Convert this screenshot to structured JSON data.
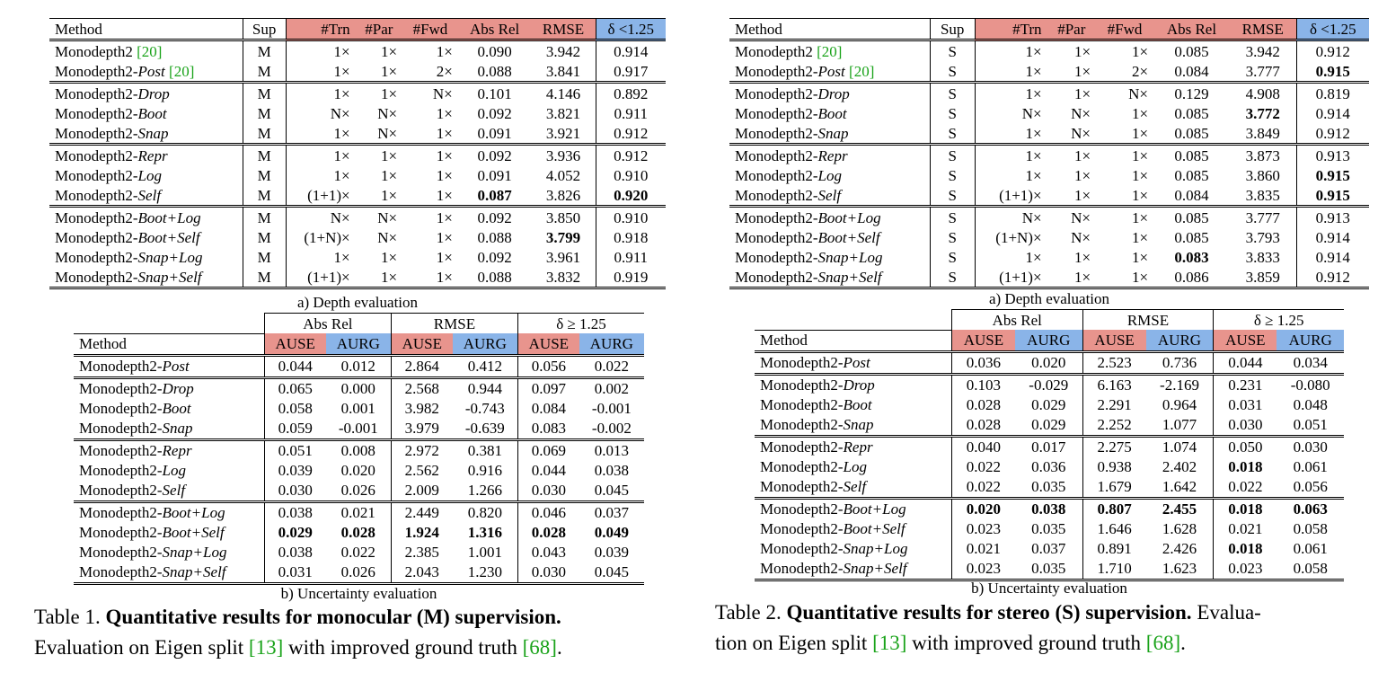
{
  "table1": {
    "depth": {
      "headers": [
        "Method",
        "Sup",
        "#Trn",
        "#Par",
        "#Fwd",
        "Abs Rel",
        "RMSE",
        "δ <1.25"
      ],
      "groups": [
        [
          {
            "base": "Monodepth2 ",
            "variant": "",
            "cite": "[20]",
            "sup": "M",
            "trn": "1×",
            "par": "1×",
            "fwd": "1×",
            "absrel": "0.090",
            "rmse": "3.942",
            "delta": "0.914",
            "bold": []
          },
          {
            "base": "Monodepth2-",
            "variant": "Post",
            "cite": " [20]",
            "sup": "M",
            "trn": "1×",
            "par": "1×",
            "fwd": "2×",
            "absrel": "0.088",
            "rmse": "3.841",
            "delta": "0.917",
            "bold": []
          }
        ],
        [
          {
            "base": "Monodepth2-",
            "variant": "Drop",
            "cite": "",
            "sup": "M",
            "trn": "1×",
            "par": "1×",
            "fwd": "N×",
            "absrel": "0.101",
            "rmse": "4.146",
            "delta": "0.892",
            "bold": []
          },
          {
            "base": "Monodepth2-",
            "variant": "Boot",
            "cite": "",
            "sup": "M",
            "trn": "N×",
            "par": "N×",
            "fwd": "1×",
            "absrel": "0.092",
            "rmse": "3.821",
            "delta": "0.911",
            "bold": []
          },
          {
            "base": "Monodepth2-",
            "variant": "Snap",
            "cite": "",
            "sup": "M",
            "trn": "1×",
            "par": "N×",
            "fwd": "1×",
            "absrel": "0.091",
            "rmse": "3.921",
            "delta": "0.912",
            "bold": []
          }
        ],
        [
          {
            "base": "Monodepth2-",
            "variant": "Repr",
            "cite": "",
            "sup": "M",
            "trn": "1×",
            "par": "1×",
            "fwd": "1×",
            "absrel": "0.092",
            "rmse": "3.936",
            "delta": "0.912",
            "bold": []
          },
          {
            "base": "Monodepth2-",
            "variant": "Log",
            "cite": "",
            "sup": "M",
            "trn": "1×",
            "par": "1×",
            "fwd": "1×",
            "absrel": "0.091",
            "rmse": "4.052",
            "delta": "0.910",
            "bold": []
          },
          {
            "base": "Monodepth2-",
            "variant": "Self",
            "cite": "",
            "sup": "M",
            "trn": "(1+1)×",
            "par": "1×",
            "fwd": "1×",
            "absrel": "0.087",
            "rmse": "3.826",
            "delta": "0.920",
            "bold": [
              "absrel",
              "delta"
            ]
          }
        ],
        [
          {
            "base": "Monodepth2-",
            "variant": "Boot+Log",
            "cite": "",
            "sup": "M",
            "trn": "N×",
            "par": "N×",
            "fwd": "1×",
            "absrel": "0.092",
            "rmse": "3.850",
            "delta": "0.910",
            "bold": []
          },
          {
            "base": "Monodepth2-",
            "variant": "Boot+Self",
            "cite": "",
            "sup": "M",
            "trn": "(1+N)×",
            "par": "N×",
            "fwd": "1×",
            "absrel": "0.088",
            "rmse": "3.799",
            "delta": "0.918",
            "bold": [
              "rmse"
            ]
          },
          {
            "base": "Monodepth2-",
            "variant": "Snap+Log",
            "cite": "",
            "sup": "M",
            "trn": "1×",
            "par": "1×",
            "fwd": "1×",
            "absrel": "0.092",
            "rmse": "3.961",
            "delta": "0.911",
            "bold": []
          },
          {
            "base": "Monodepth2-",
            "variant": "Snap+Self",
            "cite": "",
            "sup": "M",
            "trn": "(1+1)×",
            "par": "1×",
            "fwd": "1×",
            "absrel": "0.088",
            "rmse": "3.832",
            "delta": "0.919",
            "bold": []
          }
        ]
      ],
      "caption": "a) Depth evaluation"
    },
    "unc": {
      "group_headers": [
        "Abs Rel",
        "RMSE",
        "δ ≥ 1.25"
      ],
      "headers": [
        "Method",
        "AUSE",
        "AURG",
        "AUSE",
        "AURG",
        "AUSE",
        "AURG"
      ],
      "groups": [
        [
          {
            "variant": "Post",
            "v": [
              "0.044",
              "0.012",
              "2.864",
              "0.412",
              "0.056",
              "0.022"
            ],
            "bold": []
          }
        ],
        [
          {
            "variant": "Drop",
            "v": [
              "0.065",
              "0.000",
              "2.568",
              "0.944",
              "0.097",
              "0.002"
            ],
            "bold": []
          },
          {
            "variant": "Boot",
            "v": [
              "0.058",
              "0.001",
              "3.982",
              "-0.743",
              "0.084",
              "-0.001"
            ],
            "bold": []
          },
          {
            "variant": "Snap",
            "v": [
              "0.059",
              "-0.001",
              "3.979",
              "-0.639",
              "0.083",
              "-0.002"
            ],
            "bold": []
          }
        ],
        [
          {
            "variant": "Repr",
            "v": [
              "0.051",
              "0.008",
              "2.972",
              "0.381",
              "0.069",
              "0.013"
            ],
            "bold": []
          },
          {
            "variant": "Log",
            "v": [
              "0.039",
              "0.020",
              "2.562",
              "0.916",
              "0.044",
              "0.038"
            ],
            "bold": []
          },
          {
            "variant": "Self",
            "v": [
              "0.030",
              "0.026",
              "2.009",
              "1.266",
              "0.030",
              "0.045"
            ],
            "bold": []
          }
        ],
        [
          {
            "variant": "Boot+Log",
            "v": [
              "0.038",
              "0.021",
              "2.449",
              "0.820",
              "0.046",
              "0.037"
            ],
            "bold": []
          },
          {
            "variant": "Boot+Self",
            "v": [
              "0.029",
              "0.028",
              "1.924",
              "1.316",
              "0.028",
              "0.049"
            ],
            "bold": [
              0,
              1,
              2,
              3,
              4,
              5
            ]
          },
          {
            "variant": "Snap+Log",
            "v": [
              "0.038",
              "0.022",
              "2.385",
              "1.001",
              "0.043",
              "0.039"
            ],
            "bold": []
          },
          {
            "variant": "Snap+Self",
            "v": [
              "0.031",
              "0.026",
              "2.043",
              "1.230",
              "0.030",
              "0.045"
            ],
            "bold": []
          }
        ]
      ],
      "caption": "b) Uncertainty evaluation"
    },
    "title_prefix": "Table 1. ",
    "title_bold": "Quantitative results for monocular (M) supervision.",
    "title_rest_1": "Evaluation on Eigen split ",
    "cite_a": "[13]",
    "title_rest_2": " with improved ground truth ",
    "cite_b": "[68]",
    "title_end": "."
  },
  "table2": {
    "depth": {
      "headers": [
        "Method",
        "Sup",
        "#Trn",
        "#Par",
        "#Fwd",
        "Abs Rel",
        "RMSE",
        "δ <1.25"
      ],
      "groups": [
        [
          {
            "base": "Monodepth2 ",
            "variant": "",
            "cite": "[20]",
            "sup": "S",
            "trn": "1×",
            "par": "1×",
            "fwd": "1×",
            "absrel": "0.085",
            "rmse": "3.942",
            "delta": "0.912",
            "bold": []
          },
          {
            "base": "Monodepth2-",
            "variant": "Post",
            "cite": " [20]",
            "sup": "S",
            "trn": "1×",
            "par": "1×",
            "fwd": "2×",
            "absrel": "0.084",
            "rmse": "3.777",
            "delta": "0.915",
            "bold": [
              "delta"
            ]
          }
        ],
        [
          {
            "base": "Monodepth2-",
            "variant": "Drop",
            "cite": "",
            "sup": "S",
            "trn": "1×",
            "par": "1×",
            "fwd": "N×",
            "absrel": "0.129",
            "rmse": "4.908",
            "delta": "0.819",
            "bold": []
          },
          {
            "base": "Monodepth2-",
            "variant": "Boot",
            "cite": "",
            "sup": "S",
            "trn": "N×",
            "par": "N×",
            "fwd": "1×",
            "absrel": "0.085",
            "rmse": "3.772",
            "delta": "0.914",
            "bold": [
              "rmse"
            ]
          },
          {
            "base": "Monodepth2-",
            "variant": "Snap",
            "cite": "",
            "sup": "S",
            "trn": "1×",
            "par": "N×",
            "fwd": "1×",
            "absrel": "0.085",
            "rmse": "3.849",
            "delta": "0.912",
            "bold": []
          }
        ],
        [
          {
            "base": "Monodepth2-",
            "variant": "Repr",
            "cite": "",
            "sup": "S",
            "trn": "1×",
            "par": "1×",
            "fwd": "1×",
            "absrel": "0.085",
            "rmse": "3.873",
            "delta": "0.913",
            "bold": []
          },
          {
            "base": "Monodepth2-",
            "variant": "Log",
            "cite": "",
            "sup": "S",
            "trn": "1×",
            "par": "1×",
            "fwd": "1×",
            "absrel": "0.085",
            "rmse": "3.860",
            "delta": "0.915",
            "bold": [
              "delta"
            ]
          },
          {
            "base": "Monodepth2-",
            "variant": "Self",
            "cite": "",
            "sup": "S",
            "trn": "(1+1)×",
            "par": "1×",
            "fwd": "1×",
            "absrel": "0.084",
            "rmse": "3.835",
            "delta": "0.915",
            "bold": [
              "delta"
            ]
          }
        ],
        [
          {
            "base": "Monodepth2-",
            "variant": "Boot+Log",
            "cite": "",
            "sup": "S",
            "trn": "N×",
            "par": "N×",
            "fwd": "1×",
            "absrel": "0.085",
            "rmse": "3.777",
            "delta": "0.913",
            "bold": []
          },
          {
            "base": "Monodepth2-",
            "variant": "Boot+Self",
            "cite": "",
            "sup": "S",
            "trn": "(1+N)×",
            "par": "N×",
            "fwd": "1×",
            "absrel": "0.085",
            "rmse": "3.793",
            "delta": "0.914",
            "bold": []
          },
          {
            "base": "Monodepth2-",
            "variant": "Snap+Log",
            "cite": "",
            "sup": "S",
            "trn": "1×",
            "par": "1×",
            "fwd": "1×",
            "absrel": "0.083",
            "rmse": "3.833",
            "delta": "0.914",
            "bold": [
              "absrel"
            ]
          },
          {
            "base": "Monodepth2-",
            "variant": "Snap+Self",
            "cite": "",
            "sup": "S",
            "trn": "(1+1)×",
            "par": "1×",
            "fwd": "1×",
            "absrel": "0.086",
            "rmse": "3.859",
            "delta": "0.912",
            "bold": []
          }
        ]
      ],
      "caption": "a) Depth evaluation"
    },
    "unc": {
      "group_headers": [
        "Abs Rel",
        "RMSE",
        "δ ≥ 1.25"
      ],
      "headers": [
        "Method",
        "AUSE",
        "AURG",
        "AUSE",
        "AURG",
        "AUSE",
        "AURG"
      ],
      "groups": [
        [
          {
            "variant": "Post",
            "v": [
              "0.036",
              "0.020",
              "2.523",
              "0.736",
              "0.044",
              "0.034"
            ],
            "bold": []
          }
        ],
        [
          {
            "variant": "Drop",
            "v": [
              "0.103",
              "-0.029",
              "6.163",
              "-2.169",
              "0.231",
              "-0.080"
            ],
            "bold": []
          },
          {
            "variant": "Boot",
            "v": [
              "0.028",
              "0.029",
              "2.291",
              "0.964",
              "0.031",
              "0.048"
            ],
            "bold": []
          },
          {
            "variant": "Snap",
            "v": [
              "0.028",
              "0.029",
              "2.252",
              "1.077",
              "0.030",
              "0.051"
            ],
            "bold": []
          }
        ],
        [
          {
            "variant": "Repr",
            "v": [
              "0.040",
              "0.017",
              "2.275",
              "1.074",
              "0.050",
              "0.030"
            ],
            "bold": []
          },
          {
            "variant": "Log",
            "v": [
              "0.022",
              "0.036",
              "0.938",
              "2.402",
              "0.018",
              "0.061"
            ],
            "bold": [
              4
            ]
          },
          {
            "variant": "Self",
            "v": [
              "0.022",
              "0.035",
              "1.679",
              "1.642",
              "0.022",
              "0.056"
            ],
            "bold": []
          }
        ],
        [
          {
            "variant": "Boot+Log",
            "v": [
              "0.020",
              "0.038",
              "0.807",
              "2.455",
              "0.018",
              "0.063"
            ],
            "bold": [
              0,
              1,
              2,
              3,
              4,
              5
            ]
          },
          {
            "variant": "Boot+Self",
            "v": [
              "0.023",
              "0.035",
              "1.646",
              "1.628",
              "0.021",
              "0.058"
            ],
            "bold": []
          },
          {
            "variant": "Snap+Log",
            "v": [
              "0.021",
              "0.037",
              "0.891",
              "2.426",
              "0.018",
              "0.061"
            ],
            "bold": [
              4
            ]
          },
          {
            "variant": "Snap+Self",
            "v": [
              "0.023",
              "0.035",
              "1.710",
              "1.623",
              "0.023",
              "0.058"
            ],
            "bold": []
          }
        ]
      ],
      "caption": "b) Uncertainty evaluation"
    },
    "title_prefix": "Table 2. ",
    "title_bold": "Quantitative results for stereo (S) supervision.",
    "title_rest_1": " Evalua-",
    "title_line2_a": "tion on Eigen split ",
    "cite_a": "[13]",
    "title_rest_2": " with improved ground truth ",
    "cite_b": "[68]",
    "title_end": "."
  },
  "unc_method_base": "Monodepth2-",
  "colors": {
    "red": "#e8948d",
    "blue": "#8ab4e8",
    "cite": "#1aa31a"
  }
}
